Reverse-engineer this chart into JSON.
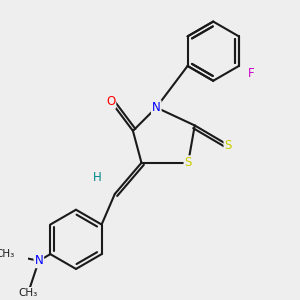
{
  "bg_color": "#eeeeee",
  "bond_color": "#1a1a1a",
  "colors": {
    "O": "#ff0000",
    "N": "#0000ff",
    "S": "#cccc00",
    "F": "#cc00cc",
    "H": "#008888",
    "C": "#1a1a1a"
  },
  "font_size": 8.5,
  "line_width": 1.5
}
